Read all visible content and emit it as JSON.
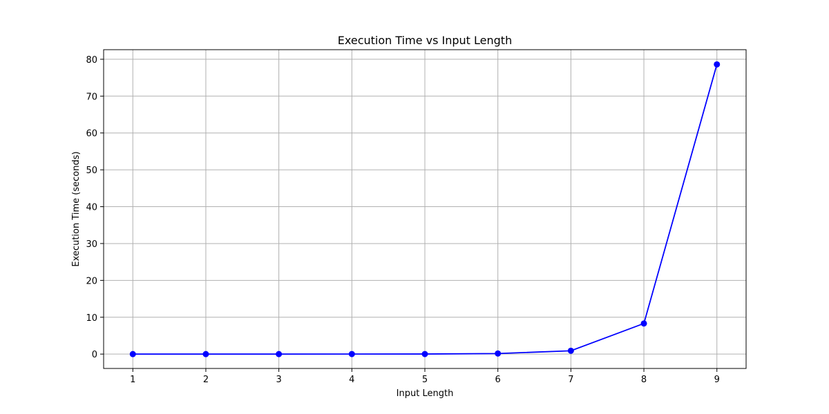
{
  "chart_data": {
    "type": "line",
    "title": "Execution Time vs Input Length",
    "xlabel": "Input Length",
    "ylabel": "Execution Time (seconds)",
    "x": [
      1,
      2,
      3,
      4,
      5,
      6,
      7,
      8,
      9
    ],
    "x_tick_labels": [
      "1",
      "2",
      "3",
      "4",
      "5",
      "6",
      "7",
      "8",
      "9"
    ],
    "xlim": [
      0.6,
      9.4
    ],
    "y_ticks": [
      0,
      10,
      20,
      30,
      40,
      50,
      60,
      70,
      80
    ],
    "y_tick_labels": [
      "0",
      "10",
      "20",
      "30",
      "40",
      "50",
      "60",
      "70",
      "80"
    ],
    "ylim": [
      -3.9,
      82.6
    ],
    "grid": true,
    "series": [
      {
        "values": [
          0.0,
          0.0,
          0.0,
          0.01,
          0.02,
          0.15,
          0.9,
          8.3,
          78.6
        ],
        "color": "#0000ff",
        "marker": "circle"
      }
    ]
  }
}
